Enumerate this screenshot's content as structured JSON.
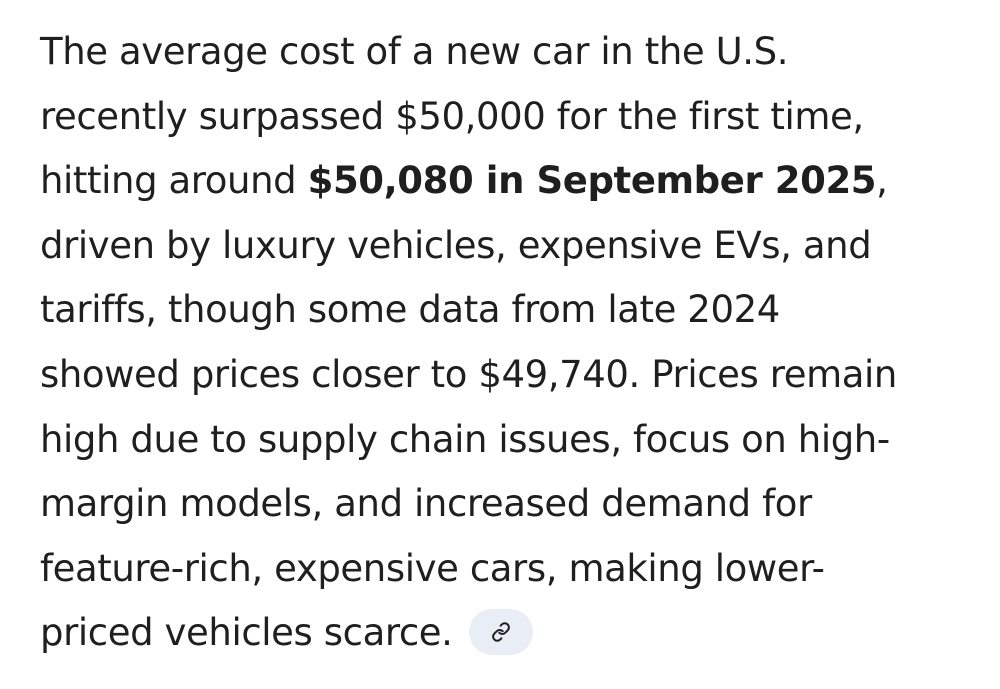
{
  "answer": {
    "lines": [
      "The average cost of a new car in the U.S.",
      "recently surpassed $50,000 for the first time,",
      "hitting around ",
      "driven by luxury vehicles, expensive EVs, and",
      "tariffs, though some data from late 2024",
      "showed prices closer to $49,740. Prices remain",
      "high due to supply chain issues, focus on high-",
      "margin models, and increased demand for",
      "feature-rich, expensive cars, making lower-",
      "priced vehicles scarce."
    ],
    "highlight": "$50,080 in September 2025",
    "highlight_suffix": ","
  },
  "source_chip": {
    "icon": "link-icon",
    "color": "#e9eef6",
    "icon_color": "#1f1f1f"
  }
}
